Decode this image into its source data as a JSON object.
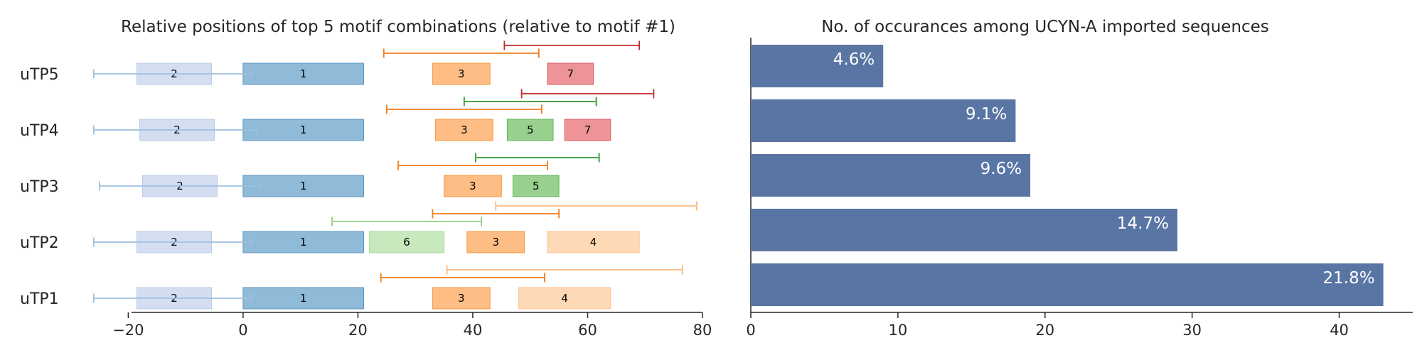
{
  "chart_data": [
    {
      "type": "range",
      "title": "Relative positions of top 5 motif combinations (relative to motif #1)",
      "xlim": [
        -25,
        80
      ],
      "xticks": [
        -20,
        0,
        20,
        40,
        60,
        80
      ],
      "xtick_labels": [
        "−20",
        "0",
        "20",
        "40",
        "60",
        "80"
      ],
      "rows": [
        {
          "label": "uTP1",
          "motifs": [
            {
              "id": "2",
              "start": -18.5,
              "end": -5.5,
              "wmin": -26,
              "wmax": 1.5
            },
            {
              "id": "1",
              "start": 0,
              "end": 21
            },
            {
              "id": "3",
              "start": 33,
              "end": 43,
              "wmin": 24,
              "wmax": 52.5
            },
            {
              "id": "4",
              "start": 48,
              "end": 64,
              "wmin": 35.5,
              "wmax": 76.5
            }
          ]
        },
        {
          "label": "uTP2",
          "motifs": [
            {
              "id": "2",
              "start": -18.5,
              "end": -5.5,
              "wmin": -26,
              "wmax": 1.5
            },
            {
              "id": "1",
              "start": 0,
              "end": 21
            },
            {
              "id": "6",
              "start": 22,
              "end": 35,
              "wmin": 15.5,
              "wmax": 41.5
            },
            {
              "id": "3",
              "start": 39,
              "end": 49,
              "wmin": 33,
              "wmax": 55
            },
            {
              "id": "4",
              "start": 53,
              "end": 69,
              "wmin": 44,
              "wmax": 79
            }
          ]
        },
        {
          "label": "uTP3",
          "motifs": [
            {
              "id": "2",
              "start": -17.5,
              "end": -4.5,
              "wmin": -25,
              "wmax": 3
            },
            {
              "id": "1",
              "start": 0,
              "end": 21
            },
            {
              "id": "3",
              "start": 35,
              "end": 45,
              "wmin": 27,
              "wmax": 53
            },
            {
              "id": "5",
              "start": 47,
              "end": 55,
              "wmin": 40.5,
              "wmax": 62
            }
          ]
        },
        {
          "label": "uTP4",
          "motifs": [
            {
              "id": "2",
              "start": -18,
              "end": -5,
              "wmin": -26,
              "wmax": 2.5
            },
            {
              "id": "1",
              "start": 0,
              "end": 21
            },
            {
              "id": "3",
              "start": 33.5,
              "end": 43.5,
              "wmin": 25,
              "wmax": 52
            },
            {
              "id": "5",
              "start": 46,
              "end": 54,
              "wmin": 38.5,
              "wmax": 61.5
            },
            {
              "id": "7",
              "start": 56,
              "end": 64,
              "wmin": 48.5,
              "wmax": 71.5
            }
          ]
        },
        {
          "label": "uTP5",
          "motifs": [
            {
              "id": "2",
              "start": -18.5,
              "end": -5.5,
              "wmin": -26,
              "wmax": 1.5
            },
            {
              "id": "1",
              "start": 0,
              "end": 21
            },
            {
              "id": "3",
              "start": 33,
              "end": 43,
              "wmin": 24.5,
              "wmax": 51.5
            },
            {
              "id": "7",
              "start": 53,
              "end": 61,
              "wmin": 45.5,
              "wmax": 69
            }
          ]
        }
      ],
      "motif_colors": {
        "1": {
          "fill": "#8fbad8",
          "stroke": "#5d95c3",
          "whisker": "#9ec1df"
        },
        "2": {
          "fill": "#d3def1",
          "stroke": "#b8c9e6",
          "whisker": "#9ec1df"
        },
        "3": {
          "fill": "#fdbd85",
          "stroke": "#f5983d",
          "whisker": "#f07c1c"
        },
        "4": {
          "fill": "#fed9b5",
          "stroke": "#fcc08e",
          "whisker": "#fcb979"
        },
        "5": {
          "fill": "#98d08d",
          "stroke": "#63b35e",
          "whisker": "#2c9a2c"
        },
        "6": {
          "fill": "#c8e9bd",
          "stroke": "#a5d997",
          "whisker": "#8fd27f"
        },
        "7": {
          "fill": "#ee9397",
          "stroke": "#dc6268",
          "whisker": "#c7292b"
        }
      }
    },
    {
      "type": "bar",
      "orientation": "horizontal",
      "title": "No. of occurances among UCYN-A imported sequences",
      "categories": [
        "uTP1",
        "uTP2",
        "uTP3",
        "uTP4",
        "uTP5"
      ],
      "values": [
        43,
        29,
        19,
        18,
        9
      ],
      "labels": [
        "21.8%",
        "14.7%",
        "9.6%",
        "9.1%",
        "4.6%"
      ],
      "xlim": [
        0,
        45
      ],
      "xticks": [
        0,
        10,
        20,
        30,
        40
      ],
      "xtick_labels": [
        "0",
        "10",
        "20",
        "30",
        "40"
      ],
      "color": "#5975a4"
    }
  ]
}
